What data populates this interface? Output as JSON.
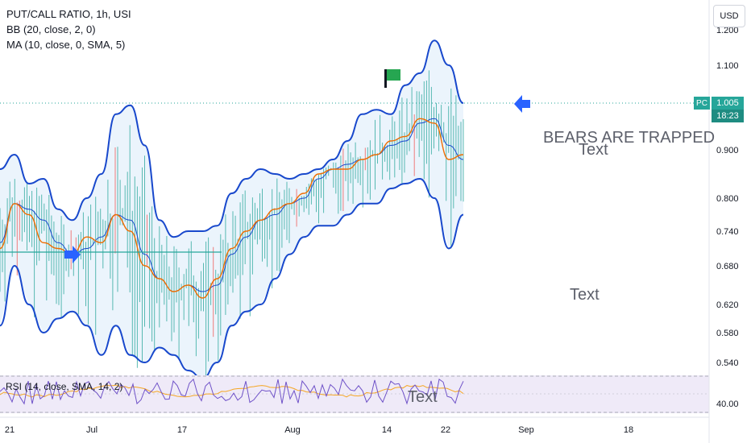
{
  "legend": {
    "title": "PUT/CALL RATIO, 1h, USI",
    "bb": "BB (20, close, 2, 0)",
    "ma": "MA (10, close, 0, SMA, 5)",
    "rsi": "RSI (14, close, SMA, 14, 2)"
  },
  "currency_button": "USD",
  "price_badge": {
    "symbol": "PC",
    "price": "1.005",
    "countdown": "18:23"
  },
  "annotations": {
    "bears": "BEARS ARE TRAPPED",
    "text1": "Text",
    "text2": "Text",
    "text3": "Text"
  },
  "colors": {
    "bb_band": "#1848cc",
    "bb_fill": "#e8f2fb",
    "ma": "#ef6c00",
    "candle_up": "#26a69a",
    "wick_down": "#ef5350",
    "arrow": "#2962ff",
    "flag": "#26a651",
    "rsi_line": "#6f52c8",
    "rsi_ma": "#f5a623",
    "rsi_bg": "#efeaf8"
  },
  "chart_data": {
    "type": "line",
    "title": "PUT/CALL RATIO, 1h, USI",
    "y_ticks": [
      "1.200",
      "1.100",
      "0.900",
      "0.800",
      "0.740",
      "0.680",
      "0.620",
      "0.580",
      "0.540"
    ],
    "rsi_ticks": [
      "40.00"
    ],
    "x_ticks": [
      "21",
      "Jul",
      "17",
      "Aug",
      "14",
      "22",
      "Sep",
      "18"
    ],
    "last_price": 1.005,
    "series": [
      {
        "name": "BB (20, close, 2, 0)",
        "upper": [
          0.86,
          0.89,
          0.83,
          0.84,
          0.78,
          0.76,
          0.8,
          0.85,
          0.98,
          1.0,
          0.91,
          0.76,
          0.73,
          0.74,
          0.74,
          0.75,
          0.81,
          0.84,
          0.86,
          0.85,
          0.84,
          0.85,
          0.86,
          0.88,
          0.92,
          0.98,
          0.99,
          0.98,
          1.05,
          1.08,
          1.17,
          1.1,
          1.005
        ],
        "basis": [
          0.72,
          0.79,
          0.78,
          0.76,
          0.72,
          0.7,
          0.71,
          0.73,
          0.77,
          0.76,
          0.7,
          0.66,
          0.64,
          0.65,
          0.64,
          0.65,
          0.7,
          0.73,
          0.76,
          0.77,
          0.79,
          0.8,
          0.84,
          0.86,
          0.87,
          0.88,
          0.89,
          0.91,
          0.92,
          0.96,
          0.97,
          0.91,
          0.88
        ],
        "lower": [
          0.59,
          0.68,
          0.62,
          0.58,
          0.6,
          0.61,
          0.59,
          0.55,
          0.59,
          0.55,
          0.54,
          0.56,
          0.55,
          0.53,
          0.52,
          0.54,
          0.59,
          0.61,
          0.62,
          0.66,
          0.7,
          0.73,
          0.75,
          0.75,
          0.77,
          0.79,
          0.79,
          0.82,
          0.83,
          0.84,
          0.8,
          0.71,
          0.77
        ]
      },
      {
        "name": "MA (10, close, 0, SMA, 5)",
        "values": [
          0.71,
          0.79,
          0.77,
          0.72,
          0.71,
          0.7,
          0.73,
          0.72,
          0.77,
          0.74,
          0.68,
          0.66,
          0.64,
          0.65,
          0.63,
          0.66,
          0.71,
          0.74,
          0.76,
          0.78,
          0.79,
          0.81,
          0.85,
          0.86,
          0.86,
          0.88,
          0.89,
          0.92,
          0.93,
          0.97,
          0.96,
          0.88,
          0.89
        ]
      }
    ],
    "ylim": [
      0.52,
      1.22
    ]
  }
}
